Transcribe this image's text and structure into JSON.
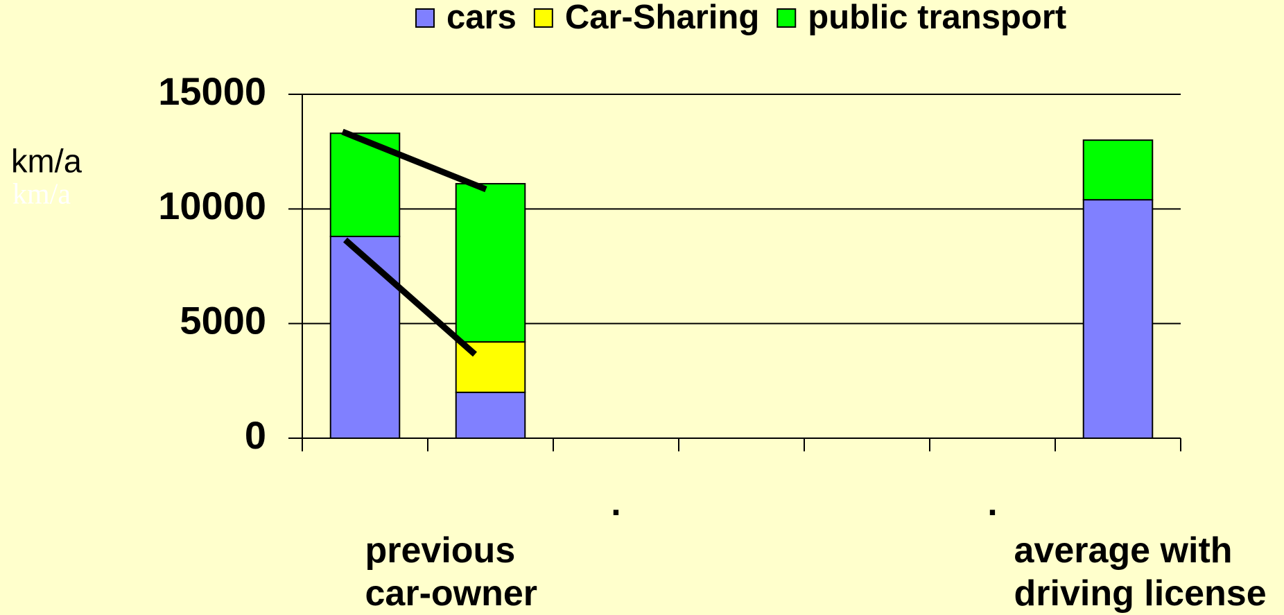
{
  "chart_data": {
    "type": "stacked_bar",
    "y_label": "km/a",
    "categories": [
      "previous car-owner",
      null,
      ".",
      null,
      null,
      ".",
      "average with driving license"
    ],
    "series": [
      {
        "name": "cars",
        "color": "#8080ff",
        "values": [
          8800,
          2000,
          null,
          null,
          null,
          null,
          10400
        ]
      },
      {
        "name": "Car-Sharing",
        "color": "#ffff00",
        "values": [
          0,
          2200,
          null,
          null,
          null,
          null,
          0
        ]
      },
      {
        "name": "public transport",
        "color": "#00ff00",
        "values": [
          4500,
          6900,
          null,
          null,
          null,
          null,
          2600
        ]
      }
    ],
    "ylim": [
      0,
      15000
    ],
    "yticks": [
      0,
      5000,
      10000,
      15000
    ],
    "grid": true,
    "legend": "top"
  }
}
